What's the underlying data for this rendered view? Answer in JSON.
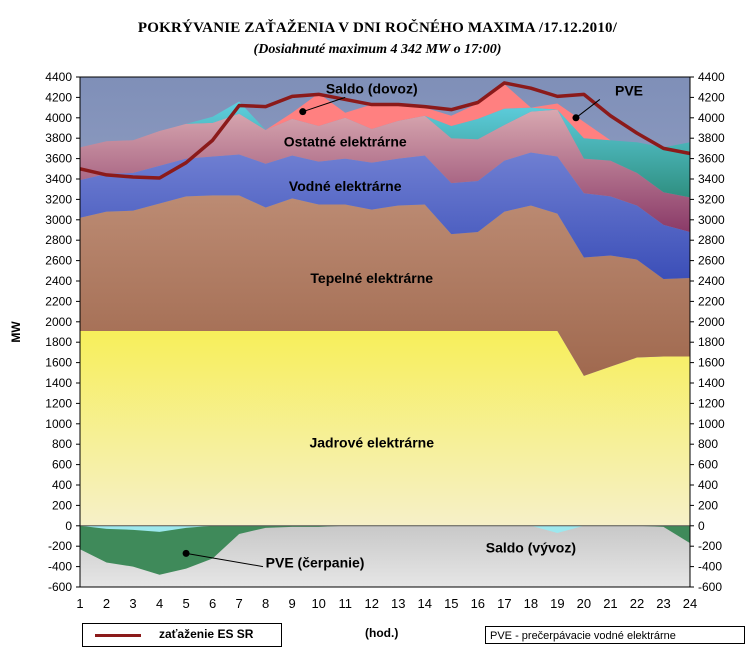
{
  "title": "POKRÝVANIE ZAŤAŽENIA V DNI  ROČNÉHO  MAXIMA /17.12.2010/",
  "subtitle": "(Dosiahnuté maximum 4 342 MW o 17:00)",
  "legend_label": "zaťaženie ES SR",
  "x_unit": "(hod.)",
  "note": "PVE - prečerpávacie vodné elektrárne",
  "colors": {
    "nuclear": "#f7ef5a",
    "thermal": "#c29178",
    "hydro": "#6f7fd2",
    "other": "#c9909d",
    "pve": "#5fcfe0",
    "import": "#ff8080",
    "export": "#9de8ee",
    "pumping": "#3f8a5a",
    "load": "#8b1a1a",
    "bg_top": "#7f8fb8"
  },
  "chart_data": {
    "type": "area",
    "title": "POKRÝVANIE ZAŤAŽENIA V DNI  ROČNÉHO  MAXIMA /17.12.2010/",
    "subtitle": "(Dosiahnuté maximum 4 342 MW o 17:00)",
    "ylabel": "MW",
    "xlabel": "(hod.)",
    "ylim": [
      -600,
      4400
    ],
    "yticks": [
      -600,
      -400,
      -200,
      0,
      200,
      400,
      600,
      800,
      1000,
      1200,
      1400,
      1600,
      1800,
      2000,
      2200,
      2400,
      2600,
      2800,
      3000,
      3200,
      3400,
      3600,
      3800,
      4000,
      4200,
      4400
    ],
    "x": [
      1,
      2,
      3,
      4,
      5,
      6,
      7,
      8,
      9,
      10,
      11,
      12,
      13,
      14,
      15,
      16,
      17,
      18,
      19,
      20,
      21,
      22,
      23,
      24
    ],
    "grid": false,
    "series": [
      {
        "name": "Jadrové elektrárne",
        "values": [
          1910,
          1910,
          1910,
          1910,
          1910,
          1910,
          1910,
          1910,
          1910,
          1910,
          1910,
          1910,
          1910,
          1910,
          1910,
          1910,
          1910,
          1910,
          1910,
          1470,
          1560,
          1650,
          1660,
          1660
        ]
      },
      {
        "name": "Tepelné elektrárne",
        "values": [
          1110,
          1170,
          1180,
          1250,
          1320,
          1330,
          1330,
          1210,
          1300,
          1240,
          1240,
          1190,
          1230,
          1240,
          950,
          970,
          1170,
          1230,
          1150,
          1160,
          1090,
          960,
          760,
          770
        ]
      },
      {
        "name": "Vodné elektrárne",
        "values": [
          370,
          370,
          370,
          370,
          370,
          380,
          400,
          430,
          420,
          420,
          450,
          460,
          460,
          480,
          500,
          500,
          500,
          520,
          560,
          630,
          580,
          530,
          530,
          450
        ]
      },
      {
        "name": "Ostatné elektrárne",
        "values": [
          320,
          320,
          320,
          340,
          340,
          330,
          400,
          330,
          360,
          350,
          400,
          330,
          370,
          390,
          440,
          410,
          350,
          400,
          460,
          340,
          350,
          320,
          320,
          340
        ]
      },
      {
        "name": "PVE",
        "values": [
          0,
          0,
          0,
          0,
          0,
          60,
          120,
          0,
          0,
          0,
          0,
          0,
          0,
          0,
          120,
          200,
          160,
          40,
          0,
          200,
          200,
          300,
          440,
          540
        ]
      },
      {
        "name": "Saldo (dovoz)",
        "values": [
          0,
          0,
          0,
          0,
          0,
          0,
          0,
          0,
          60,
          320,
          50,
          240,
          150,
          80,
          100,
          150,
          240,
          0,
          60,
          160,
          0,
          0,
          0,
          0
        ]
      },
      {
        "name": "PVE (čerpanie)",
        "values": [
          -230,
          -360,
          -400,
          -480,
          -420,
          -320,
          -80,
          -20,
          -10,
          -10,
          0,
          0,
          0,
          0,
          0,
          0,
          0,
          0,
          0,
          0,
          0,
          0,
          -10,
          -170
        ]
      },
      {
        "name": "Saldo (vývoz)",
        "values": [
          0,
          -30,
          -40,
          -60,
          -20,
          0,
          0,
          0,
          0,
          0,
          0,
          0,
          0,
          0,
          0,
          0,
          0,
          0,
          -70,
          0,
          0,
          0,
          0,
          0
        ]
      },
      {
        "name": "zaťaženie ES SR",
        "type": "line",
        "values": [
          3500,
          3440,
          3420,
          3410,
          3560,
          3780,
          4120,
          4110,
          4210,
          4230,
          4180,
          4130,
          4130,
          4110,
          4080,
          4150,
          4342,
          4290,
          4210,
          4230,
          4020,
          3850,
          3700,
          3650
        ]
      }
    ],
    "annotations": [
      "Saldo (dovoz)",
      "PVE",
      "Ostatné elektrárne",
      "Vodné elektrárne",
      "Tepelné elektrárne",
      "Jadrové elektrárne",
      "PVE (čerpanie)",
      "Saldo (vývoz)"
    ]
  }
}
